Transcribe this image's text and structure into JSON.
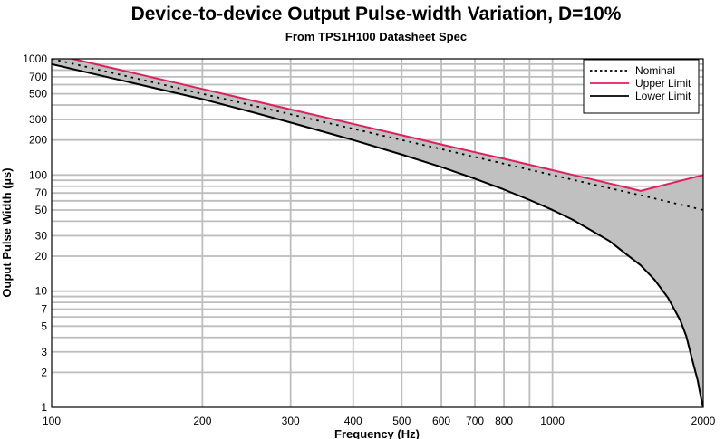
{
  "chart_data": {
    "type": "line",
    "title": "Device-to-device Output Pulse-width Variation, D=10%",
    "subtitle": "From TPS1H100 Datasheet Spec",
    "xlabel": "Frequency (Hz)",
    "ylabel": "Ouput Pulse Width (µs)",
    "x_scale": "log",
    "y_scale": "log",
    "xlim": [
      100,
      2000
    ],
    "ylim": [
      1,
      1000
    ],
    "x_ticks": [
      100,
      200,
      300,
      400,
      500,
      600,
      700,
      800,
      1000,
      2000
    ],
    "y_ticks": [
      1,
      2,
      3,
      5,
      7,
      10,
      20,
      30,
      50,
      70,
      100,
      200,
      300,
      500,
      700,
      1000
    ],
    "grid": true,
    "legend_position": "top-right",
    "shaded_region_between": [
      "Upper Limit",
      "Lower Limit"
    ],
    "shade_color": "#c0c0c0",
    "series": [
      {
        "name": "Nominal",
        "style": "dotted",
        "color": "#000000",
        "x": [
          100,
          125,
          150,
          200,
          250,
          300,
          400,
          500,
          600,
          700,
          800,
          1000,
          1250,
          1500,
          2000
        ],
        "y": [
          1000,
          800,
          667,
          500,
          400,
          333,
          250,
          200,
          167,
          143,
          125,
          100,
          80,
          67,
          50
        ]
      },
      {
        "name": "Upper Limit",
        "style": "solid",
        "color": "#e0205e",
        "x": [
          100,
          125,
          150,
          200,
          250,
          300,
          400,
          500,
          600,
          700,
          800,
          1000,
          1250,
          1500,
          2000
        ],
        "y": [
          1100,
          880,
          733,
          550,
          440,
          367,
          275,
          220,
          183,
          157,
          138,
          110,
          88,
          73,
          100
        ]
      },
      {
        "name": "Lower Limit",
        "style": "solid",
        "color": "#000000",
        "x": [
          100,
          125,
          150,
          200,
          250,
          300,
          400,
          500,
          600,
          700,
          800,
          900,
          1000,
          1100,
          1200,
          1300,
          1400,
          1500,
          1600,
          1700,
          1800,
          1850,
          1900,
          1950,
          1980,
          2000
        ],
        "y": [
          900,
          720,
          600,
          450,
          350,
          283,
          200,
          150,
          117,
          93,
          75,
          61,
          50,
          41,
          33,
          27,
          21,
          16.7,
          12.5,
          8.8,
          5.6,
          4.1,
          2.6,
          1.7,
          1.2,
          1.0
        ]
      }
    ]
  }
}
